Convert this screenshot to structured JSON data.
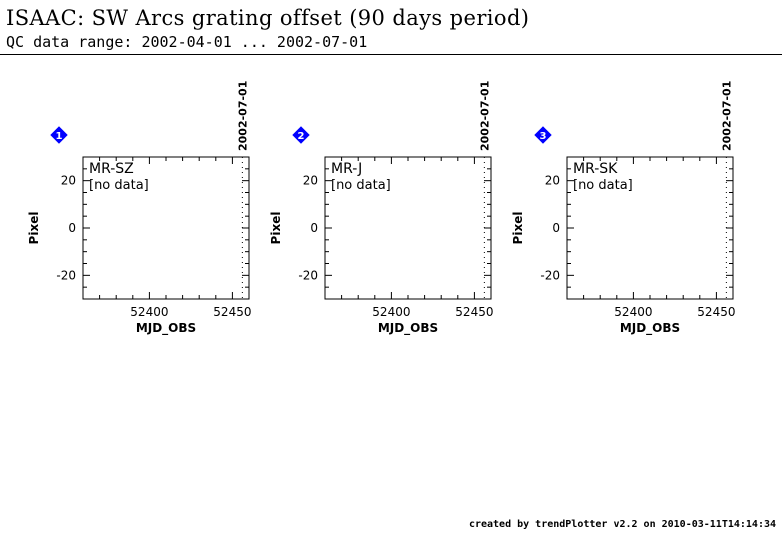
{
  "page": {
    "title": "ISAAC: SW Arcs grating offset (90 days period)",
    "subtitle": "QC data range: 2002-04-01 ... 2002-07-01",
    "footer": "created by trendPlotter v2.2 on 2010-03-11T14:14:34"
  },
  "colors": {
    "marker_fill": "#0000ff",
    "axis": "#000000",
    "background": "#ffffff"
  },
  "chart_data": [
    {
      "type": "scatter",
      "panel_number": "1",
      "title": "MR-SZ",
      "status": "[no data]",
      "xlabel": "MJD_OBS",
      "ylabel": "Pixel",
      "xlim": [
        52360,
        52460
      ],
      "ylim": [
        -30,
        30
      ],
      "xticks": [
        52400,
        52450
      ],
      "yticks": [
        20,
        0,
        -20
      ],
      "marker_date": "2002-07-01",
      "marker_x": 52456,
      "series": []
    },
    {
      "type": "scatter",
      "panel_number": "2",
      "title": "MR-J",
      "status": "[no data]",
      "xlabel": "MJD_OBS",
      "ylabel": "Pixel",
      "xlim": [
        52360,
        52460
      ],
      "ylim": [
        -30,
        30
      ],
      "xticks": [
        52400,
        52450
      ],
      "yticks": [
        20,
        0,
        -20
      ],
      "marker_date": "2002-07-01",
      "marker_x": 52456,
      "series": []
    },
    {
      "type": "scatter",
      "panel_number": "3",
      "title": "MR-SK",
      "status": "[no data]",
      "xlabel": "MJD_OBS",
      "ylabel": "Pixel",
      "xlim": [
        52360,
        52460
      ],
      "ylim": [
        -30,
        30
      ],
      "xticks": [
        52400,
        52450
      ],
      "yticks": [
        20,
        0,
        -20
      ],
      "marker_date": "2002-07-01",
      "marker_x": 52456,
      "series": []
    }
  ]
}
